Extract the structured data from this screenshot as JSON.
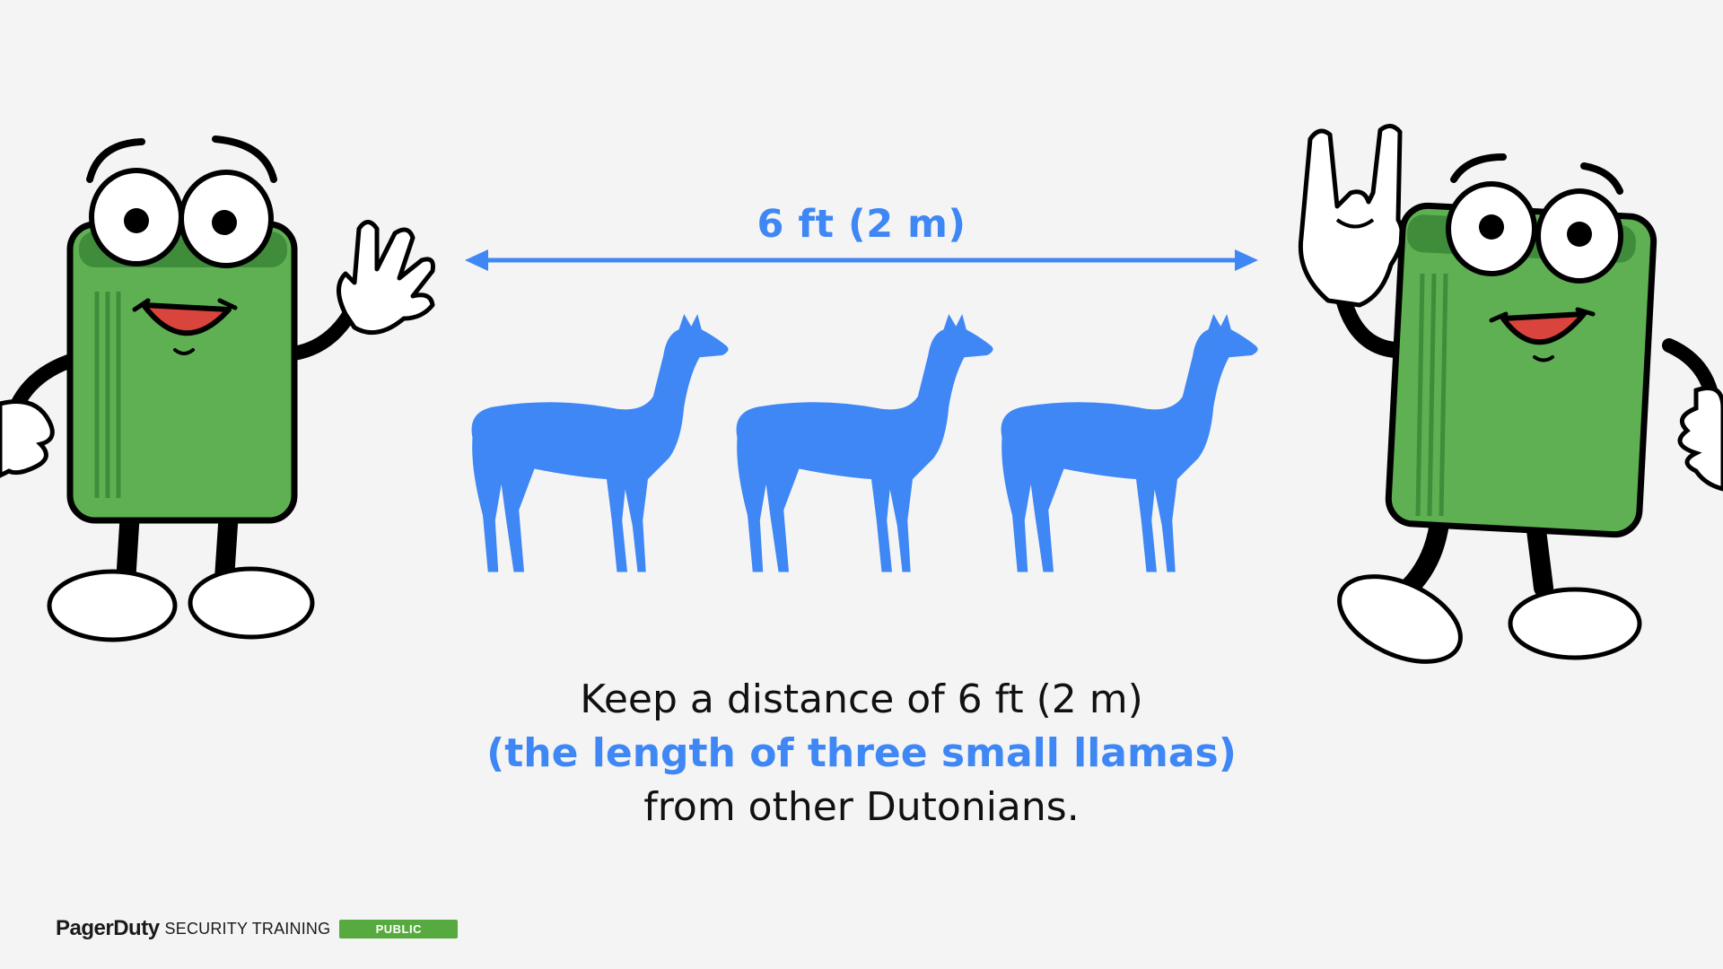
{
  "slide": {
    "background": "#f4f4f4",
    "accent": "#3f87f5",
    "mascot_green": "#5fb052",
    "measure_label": "6 ft (2 m)",
    "caption": {
      "line1": "Keep a distance of 6 ft (2 m)",
      "line2": "(the length of three small llamas)",
      "line3": "from other Dutonians."
    },
    "llama_count": 3,
    "icons": [
      "double-arrow-icon",
      "llama-icon",
      "mascot-waving",
      "mascot-rock-hand"
    ]
  },
  "footer": {
    "brand": "PagerDuty",
    "label": "SECURITY TRAINING",
    "badge": "PUBLIC",
    "badge_color": "#57aa3f"
  }
}
